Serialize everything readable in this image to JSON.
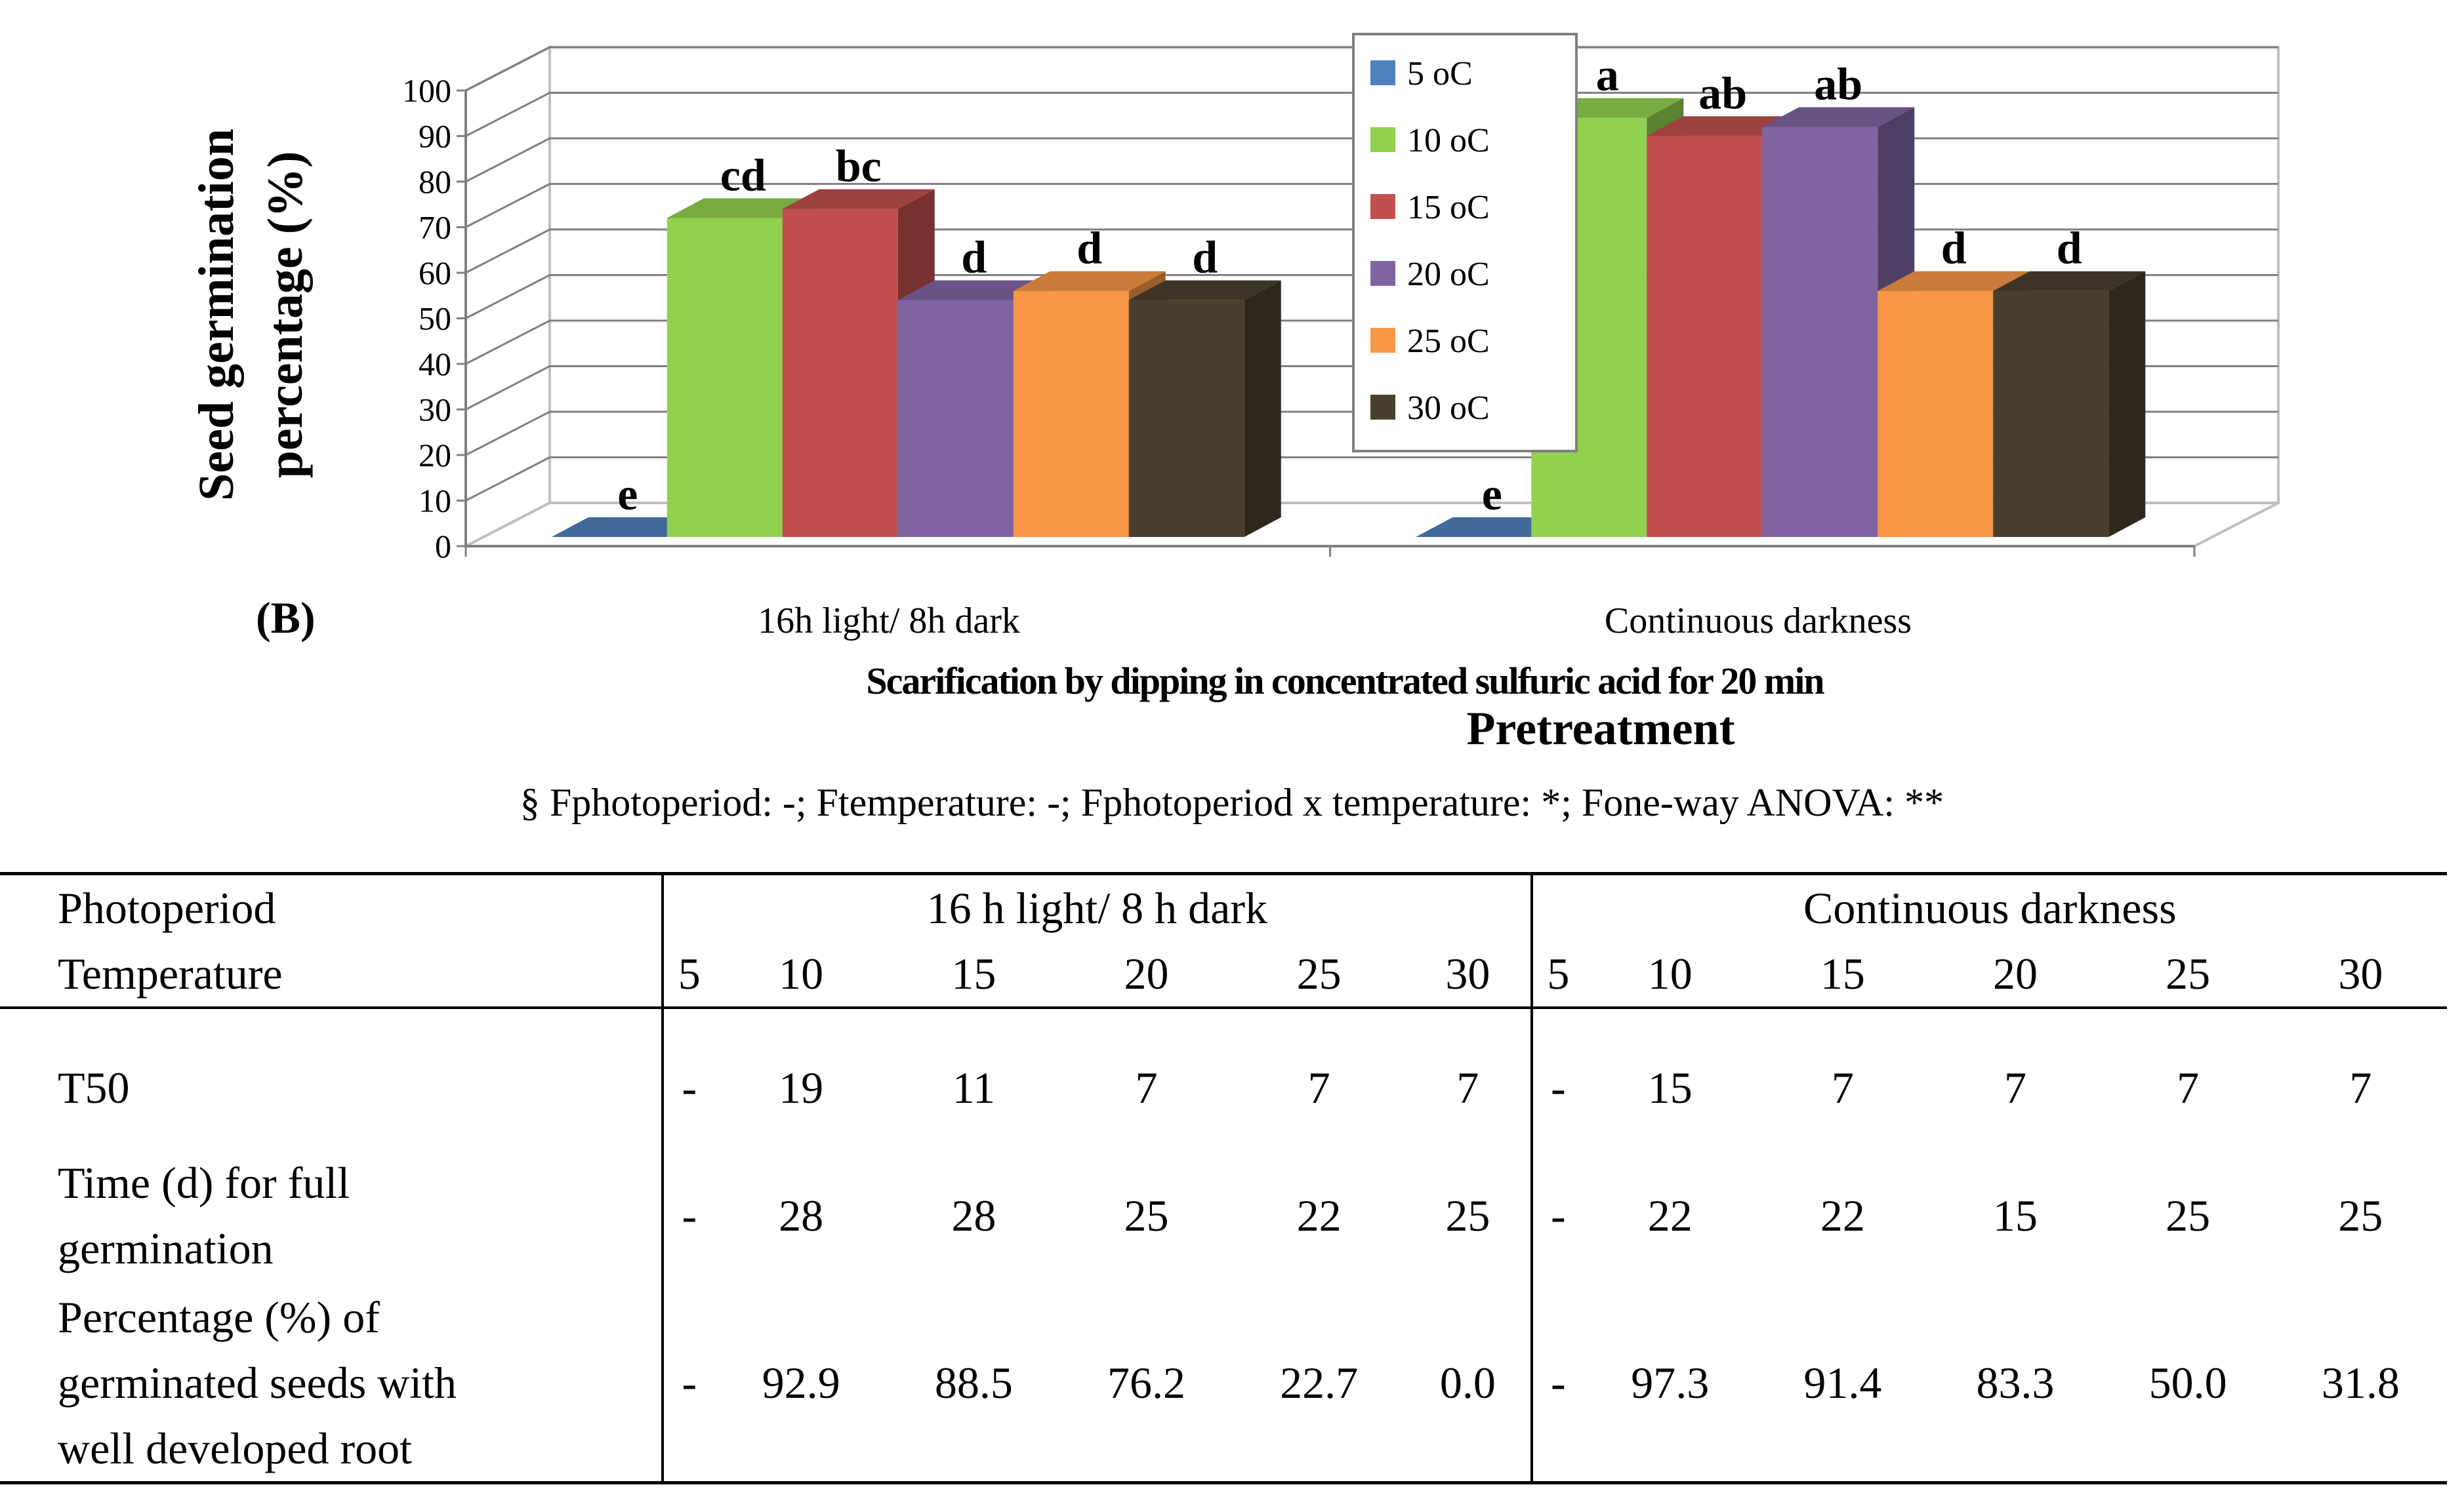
{
  "chart_data": {
    "type": "bar",
    "panel_label": "(B)",
    "categories": [
      "16h light/ 8h dark",
      "Continuous darkness"
    ],
    "subtitle": "Scarification by dipping in concentrated sulfuric acid  for 20 min",
    "xlabel": "Pretreatment",
    "ylabel_lines": [
      "Seed germination",
      "percentage (%)"
    ],
    "ylim": [
      0,
      100
    ],
    "yticks": [
      "0",
      "10",
      "20",
      "30",
      "40",
      "50",
      "60",
      "70",
      "80",
      "90",
      "100"
    ],
    "legend_position": "top-center",
    "series": [
      {
        "name": "5 oC",
        "color": "#4F81BD",
        "values": [
          0,
          0
        ],
        "labels": [
          "e",
          "e"
        ]
      },
      {
        "name": "10 oC",
        "color": "#92D050",
        "values": [
          70,
          92
        ],
        "labels": [
          "cd",
          "a"
        ]
      },
      {
        "name": "15 oC",
        "color": "#C0504D",
        "values": [
          72,
          88
        ],
        "labels": [
          "bc",
          "ab"
        ]
      },
      {
        "name": "20 oC",
        "color": "#8064A2",
        "values": [
          52,
          90
        ],
        "labels": [
          "d",
          "ab"
        ]
      },
      {
        "name": "25 oC",
        "color": "#F79646",
        "values": [
          54,
          54
        ],
        "labels": [
          "d",
          "d"
        ]
      },
      {
        "name": "30 oC",
        "color": "#4A3F2F",
        "values": [
          52,
          54
        ],
        "labels": [
          "d",
          "d"
        ]
      }
    ]
  },
  "footnote": "§ Fphotoperiod: -; Ftemperature: -; Fphotoperiod x temperature: *; Fone-way ANOVA: **",
  "table": {
    "photoperiod_label": "Photoperiod",
    "temperature_label": "Temperature",
    "groups": [
      "16 h light/ 8 h dark",
      "Continuous darkness"
    ],
    "temperatures": [
      "5",
      "10",
      "15",
      "20",
      "25",
      "30",
      "5",
      "10",
      "15",
      "20",
      "25",
      "30"
    ],
    "rows": [
      {
        "label_lines": [
          "T50"
        ],
        "values": [
          "-",
          "19",
          "11",
          "7",
          "7",
          "7",
          "-",
          "15",
          "7",
          "7",
          "7",
          "7"
        ]
      },
      {
        "label_lines": [
          "Time (d) for full",
          "germination"
        ],
        "values": [
          "-",
          "28",
          "28",
          "25",
          "22",
          "25",
          "-",
          "22",
          "22",
          "15",
          "25",
          "25"
        ]
      },
      {
        "label_lines": [
          "Percentage (%) of",
          "germinated seeds with",
          "well developed root"
        ],
        "values": [
          "-",
          "92.9",
          "88.5",
          "76.2",
          "22.7",
          "0.0",
          "-",
          "97.3",
          "91.4",
          "83.3",
          "50.0",
          "31.8"
        ]
      }
    ]
  }
}
